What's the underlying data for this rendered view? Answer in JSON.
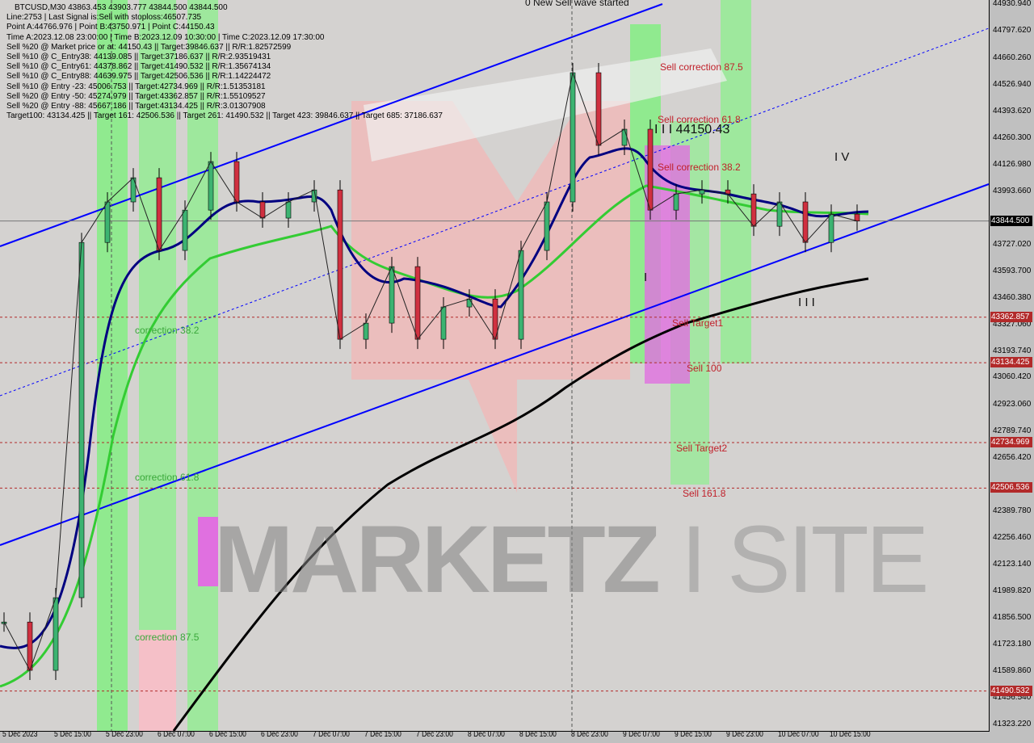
{
  "header": {
    "symbol_line": "BTCUSD,M30  43863.453 43903.777 43844.500 43844.500",
    "info_lines": [
      "Line:2753 | Last Signal is:Sell with stoploss:46507.735",
      "Point A:44766.976 | Point B:43750.971 | Point C:44150.43",
      "Time A:2023.12.08 23:00:00 | Time B:2023.12.09 10:30:00 | Time C:2023.12.09 17:30:00",
      "Sell %20 @ Market price or at: 44150.43 || Target:39846.637 || R/R:1.82572599",
      "Sell %10 @ C_Entry38: 44139.085 || Target:37186.637 || R/R:2.93519431",
      "Sell %10 @ C_Entry61: 44378.862 || Target:41490.532 || R/R:1.35674134",
      "Sell %10 @ C_Entry88: 44639.975 || Target:42506.536 || R/R:1.14224472",
      "Sell %10 @ Entry -23: 45006.753 || Target:42734.969 || R/R:1.51353181",
      "Sell %20 @ Entry -50: 45274.979 || Target:43362.857 || R/R:1.55109527",
      "Sell %20 @ Entry -88: 45667.186 || Target:43134.425 || R/R:3.01307908",
      "Target100: 43134.425 || Target 161: 42506.536 || Target 261: 41490.532 || Target 423: 39846.637 || Target 685: 37186.637"
    ]
  },
  "annotations": {
    "new_wave": "0 New Sell wave started",
    "sell_corr_875": "Sell correction 87.5",
    "sell_corr_618": "Sell correction 61.8",
    "sell_corr_382": "Sell correction 38.2",
    "wave3_price": "I I I 44150.43",
    "wave4": "I V",
    "wave1": "I",
    "wave3": "I I I",
    "sell_target1": "Sell Target1",
    "sell_100": "Sell 100",
    "sell_target2": "Sell Target2",
    "sell_1618": "Sell 161.8",
    "corr_382": "correction 38.2",
    "corr_618": "correction 61.8",
    "corr_875": "correction 87.5"
  },
  "watermark": "MARKETZ SITE",
  "colors": {
    "bull": "#3cb371",
    "bear": "#d03040",
    "level": "#b22a2a",
    "channel": "#0000ff",
    "ma_fast": "#000080",
    "ma_mid": "#33cc33",
    "ma_slow": "#000000"
  },
  "chart_data": {
    "type": "candlestick",
    "symbol": "BTCUSD",
    "timeframe": "M30",
    "ylim": [
      41323.22,
      44930.94
    ],
    "y_ticks": [
      "44930.940",
      "44797.620",
      "44660.260",
      "44526.940",
      "44393.620",
      "44260.300",
      "44126.980",
      "43993.660",
      "43727.020",
      "43593.700",
      "43460.380",
      "43327.060",
      "43193.740",
      "43060.420",
      "42923.060",
      "42789.740",
      "42656.420",
      "42389.780",
      "42256.460",
      "42123.140",
      "41989.820",
      "41856.500",
      "41723.180",
      "41589.860",
      "41456.540",
      "41323.220"
    ],
    "x_ticks": [
      "5 Dec 2023",
      "5 Dec 15:00",
      "5 Dec 23:00",
      "6 Dec 07:00",
      "6 Dec 15:00",
      "6 Dec 23:00",
      "7 Dec 07:00",
      "7 Dec 15:00",
      "7 Dec 23:00",
      "8 Dec 07:00",
      "8 Dec 15:00",
      "8 Dec 23:00",
      "9 Dec 07:00",
      "9 Dec 15:00",
      "9 Dec 23:00",
      "10 Dec 07:00",
      "10 Dec 15:00"
    ],
    "x": [
      "5 Dec 07:00",
      "5 Dec 11:00",
      "5 Dec 15:00",
      "5 Dec 19:00",
      "5 Dec 23:00",
      "6 Dec 03:00",
      "6 Dec 07:00",
      "6 Dec 11:00",
      "6 Dec 15:00",
      "6 Dec 19:00",
      "6 Dec 23:00",
      "7 Dec 03:00",
      "7 Dec 07:00",
      "7 Dec 11:00",
      "7 Dec 15:00",
      "7 Dec 19:00",
      "7 Dec 23:00",
      "8 Dec 03:00",
      "8 Dec 07:00",
      "8 Dec 11:00",
      "8 Dec 15:00",
      "8 Dec 19:00",
      "8 Dec 23:00",
      "9 Dec 03:00",
      "9 Dec 07:00",
      "9 Dec 11:00",
      "9 Dec 15:00",
      "9 Dec 19:00",
      "9 Dec 23:00",
      "10 Dec 03:00",
      "10 Dec 07:00",
      "10 Dec 11:00",
      "10 Dec 15:00",
      "10 Dec 19:00"
    ],
    "close": [
      41836,
      41594,
      41958,
      43737,
      43940,
      44061,
      43697,
      43899,
      44142,
      43940,
      43859,
      43940,
      44000,
      43252,
      43333,
      43616,
      43252,
      43414,
      43454,
      43252,
      43697,
      43940,
      44587,
      44223,
      44304,
      43899,
      43980,
      44000,
      43980,
      43818,
      43940,
      43737,
      43879,
      43844.5
    ],
    "levels": [
      {
        "label": "43362.857",
        "value": 43362.857
      },
      {
        "label": "43134.425",
        "value": 43134.425
      },
      {
        "label": "42734.969",
        "value": 42734.969
      },
      {
        "label": "42506.536",
        "value": 42506.536
      },
      {
        "label": "41490.532",
        "value": 41490.532
      }
    ],
    "current_price": {
      "label": "43844.500",
      "value": 43844.5
    }
  }
}
